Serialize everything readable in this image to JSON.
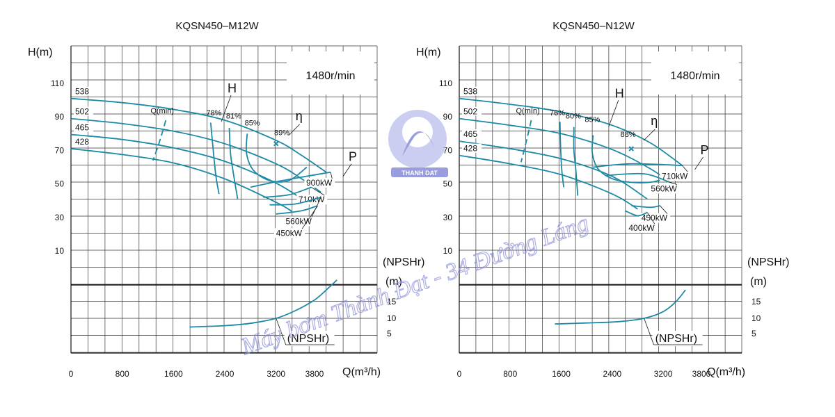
{
  "watermark": {
    "text": "Máy bơm Thành Đạt - 34 Đường Láng",
    "logo_text": "THANH DAT"
  },
  "chart_data": [
    {
      "type": "line",
      "title": "KQSN450–M12W",
      "speed": "1480r/min",
      "ylabel": "H(m)",
      "xlabel": "Q(m³/h)",
      "npsh_axis_label": "(NPSHr)",
      "npsh_unit": "(m)",
      "xlim": [
        0,
        4200
      ],
      "x_ticks": [
        "0",
        "800",
        "1600",
        "2400",
        "3200",
        "3800"
      ],
      "x_tick_values": [
        0,
        800,
        1600,
        2400,
        3200,
        3800
      ],
      "ylim": [
        0,
        120
      ],
      "y_ticks": [
        "10",
        "30",
        "50",
        "70",
        "90",
        "110"
      ],
      "y_tick_values": [
        10,
        30,
        50,
        70,
        90,
        110
      ],
      "npsh_ticks": [
        "5",
        "10",
        "15"
      ],
      "npsh_tick_values": [
        5,
        10,
        15
      ],
      "qmin_label": "Q(min)",
      "h_label": "H",
      "eta_label": "η",
      "p_label": "P",
      "npsh_label": "(NPSHr)",
      "head_curves": [
        {
          "name": "538",
          "points": [
            [
              0,
              101
            ],
            [
              800,
              98.5
            ],
            [
              1600,
              94.5
            ],
            [
              2400,
              88
            ],
            [
              3200,
              76
            ],
            [
              3600,
              67
            ],
            [
              4000,
              56.5
            ]
          ]
        },
        {
          "name": "502",
          "points": [
            [
              0,
              89
            ],
            [
              800,
              86
            ],
            [
              1600,
              81.5
            ],
            [
              2400,
              74
            ],
            [
              3200,
              62
            ],
            [
              3600,
              53
            ],
            [
              3900,
              45
            ]
          ]
        },
        {
          "name": "465",
          "points": [
            [
              0,
              79.5
            ],
            [
              800,
              76.5
            ],
            [
              1600,
              71.5
            ],
            [
              2400,
              63.5
            ],
            [
              3200,
              50.5
            ],
            [
              3700,
              38.5
            ]
          ]
        },
        {
          "name": "428",
          "points": [
            [
              0,
              71
            ],
            [
              800,
              67.5
            ],
            [
              1600,
              62.5
            ],
            [
              2400,
              53
            ],
            [
              3200,
              39
            ],
            [
              3450,
              33.5
            ]
          ]
        }
      ],
      "efficiency_labels": [
        "78%",
        "81%",
        "85%",
        "89%"
      ],
      "efficiency_label_points": [
        [
          2230,
          91
        ],
        [
          2540,
          89
        ],
        [
          2830,
          85
        ],
        [
          3290,
          79
        ]
      ],
      "efficiency_contours": [
        {
          "name": "78%",
          "points": [
            [
              2180,
              86.5
            ],
            [
              2220,
              70
            ],
            [
              2260,
              55
            ],
            [
              2310,
              44
            ]
          ]
        },
        {
          "name": "81%",
          "points": [
            [
              2470,
              83.5
            ],
            [
              2490,
              68
            ],
            [
              2540,
              55
            ],
            [
              2600,
              41
            ]
          ]
        },
        {
          "name": "85%",
          "points": [
            [
              2750,
              80
            ],
            [
              2740,
              68
            ],
            [
              2850,
              58
            ],
            [
              3100,
              52
            ],
            [
              3400,
              52
            ],
            [
              3680,
              60
            ]
          ]
        }
      ],
      "bep": {
        "label": "89%",
        "x": 3200,
        "y": 74
      },
      "qmin_line": [
        [
          1480,
          88
        ],
        [
          1380,
          75
        ],
        [
          1280,
          64
        ]
      ],
      "power_lines": [
        {
          "name": "900kW",
          "points": [
            [
              2800,
              48
            ],
            [
              3300,
              52
            ],
            [
              4050,
              57
            ]
          ]
        },
        {
          "name": "710kW",
          "points": [
            [
              3000,
              42
            ],
            [
              3400,
              43.5
            ],
            [
              3750,
              48
            ]
          ]
        },
        {
          "name": "560kW",
          "points": [
            [
              3100,
              37.5
            ],
            [
              3500,
              38
            ],
            [
              3900,
              42
            ]
          ]
        },
        {
          "name": "450kW",
          "points": [
            [
              3200,
              32
            ],
            [
              3600,
              34
            ],
            [
              3850,
              37
            ]
          ]
        }
      ],
      "power_label_points": [
        [
          4010,
          49
        ],
        [
          3890,
          39
        ],
        [
          3690,
          26
        ],
        [
          3540,
          19
        ]
      ],
      "npsh_curve": [
        [
          1850,
          7.4
        ],
        [
          2400,
          7.8
        ],
        [
          2800,
          8.5
        ],
        [
          3200,
          10
        ],
        [
          3500,
          12.3
        ],
        [
          3800,
          15.5
        ],
        [
          4000,
          18.8
        ],
        [
          4150,
          21.5
        ]
      ]
    },
    {
      "type": "line",
      "title": "KQSN450–N12W",
      "speed": "1480r/min",
      "ylabel": "H(m)",
      "xlabel": "Q(m³/h)",
      "npsh_axis_label": "(NPSHr)",
      "npsh_unit": "(m)",
      "xlim": [
        0,
        4200
      ],
      "x_ticks": [
        "0",
        "800",
        "1600",
        "2400",
        "3200",
        "3800"
      ],
      "x_tick_values": [
        0,
        800,
        1600,
        2400,
        3200,
        3800
      ],
      "ylim": [
        0,
        120
      ],
      "y_ticks": [
        "10",
        "30",
        "50",
        "70",
        "90",
        "110"
      ],
      "y_tick_values": [
        10,
        30,
        50,
        70,
        90,
        110
      ],
      "npsh_ticks": [
        "5",
        "10",
        "15"
      ],
      "npsh_tick_values": [
        5,
        10,
        15
      ],
      "qmin_label": "Q(mIn)",
      "h_label": "H",
      "eta_label": "η",
      "p_label": "P",
      "npsh_label": "(NPSHr)",
      "head_curves": [
        {
          "name": "538",
          "points": [
            [
              0,
              101
            ],
            [
              800,
              97.5
            ],
            [
              1600,
              93
            ],
            [
              2400,
              85
            ],
            [
              3000,
              74.5
            ],
            [
              3500,
              61
            ]
          ]
        },
        {
          "name": "502",
          "points": [
            [
              0,
              89
            ],
            [
              800,
              85
            ],
            [
              1600,
              80
            ],
            [
              2400,
              70.5
            ],
            [
              3000,
              59
            ],
            [
              3300,
              51
            ]
          ]
        },
        {
          "name": "465",
          "points": [
            [
              0,
              75.5
            ],
            [
              800,
              71
            ],
            [
              1600,
              65
            ],
            [
              2400,
              54.5
            ],
            [
              2950,
              41
            ]
          ]
        },
        {
          "name": "428",
          "points": [
            [
              0,
              67
            ],
            [
              800,
              62
            ],
            [
              1600,
              55.5
            ],
            [
              2400,
              44
            ],
            [
              2800,
              35
            ]
          ]
        }
      ],
      "efficiency_labels": [
        "76%",
        "80%",
        "85%",
        "88%"
      ],
      "efficiency_label_points": [
        [
          1540,
          91
        ],
        [
          1790,
          89
        ],
        [
          2090,
          87
        ],
        [
          2650,
          78
        ]
      ],
      "efficiency_contours": [
        {
          "name": "76%",
          "points": [
            [
              1580,
              87
            ],
            [
              1590,
              72
            ],
            [
              1610,
              58
            ],
            [
              1640,
              48
            ]
          ]
        },
        {
          "name": "80%",
          "points": [
            [
              1800,
              84
            ],
            [
              1800,
              70
            ],
            [
              1830,
              58
            ],
            [
              1860,
              43
            ]
          ]
        },
        {
          "name": "85%",
          "points": [
            [
              2100,
              79
            ],
            [
              2090,
              68
            ],
            [
              2200,
              58
            ],
            [
              2500,
              52
            ],
            [
              3000,
              51
            ],
            [
              3450,
              56
            ]
          ]
        }
      ],
      "bep": {
        "label": "88%",
        "x": 2700,
        "y": 71
      },
      "qmin_line": [
        [
          1130,
          88
        ],
        [
          1050,
          75
        ],
        [
          970,
          63
        ]
      ],
      "power_lines": [
        {
          "name": "710kW",
          "points": [
            [
              2100,
              60
            ],
            [
              2700,
              62
            ],
            [
              3500,
              61
            ]
          ]
        },
        {
          "name": "560kW",
          "points": [
            [
              2300,
              55
            ],
            [
              2900,
              56
            ],
            [
              3300,
              51
            ]
          ]
        },
        {
          "name": "450kW",
          "points": [
            [
              2700,
              37
            ],
            [
              3000,
              36
            ],
            [
              3150,
              37
            ]
          ]
        },
        {
          "name": "400kW",
          "points": [
            [
              2600,
              34
            ],
            [
              2800,
              31
            ],
            [
              2950,
              33
            ]
          ]
        }
      ],
      "power_label_points": [
        [
          3520,
          53
        ],
        [
          3350,
          45.5
        ],
        [
          3200,
          28
        ],
        [
          3000,
          22
        ]
      ],
      "npsh_curve": [
        [
          1500,
          8.3
        ],
        [
          2000,
          8.6
        ],
        [
          2500,
          9
        ],
        [
          2900,
          10
        ],
        [
          3200,
          12
        ],
        [
          3400,
          15
        ],
        [
          3550,
          18.5
        ]
      ]
    }
  ]
}
